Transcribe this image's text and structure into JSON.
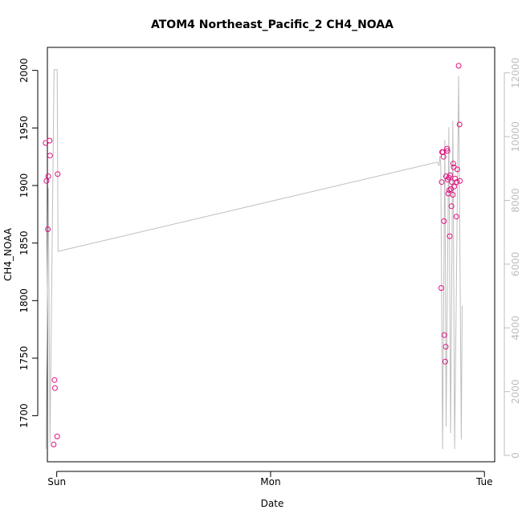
{
  "chart_data": {
    "type": "scatter",
    "title": "ATOM4 Northeast_Pacific_2 CH4_NOAA",
    "xlabel": "Date",
    "ylabel": "CH4_NOAA",
    "x_ticks": [
      "Sun",
      "Mon",
      "Tue"
    ],
    "x_range_hours": [
      -1.05,
      49.15
    ],
    "ylim": [
      1660,
      2020
    ],
    "y_ticks": [
      1700,
      1750,
      1800,
      1850,
      1900,
      1950,
      2000
    ],
    "y2lim": [
      -200,
      12800
    ],
    "y2_ticks": [
      0,
      2000,
      4000,
      6000,
      8000,
      10000,
      12000
    ],
    "colors": {
      "points": "#e0117f",
      "line": "#bebebe",
      "axis": "#000000",
      "right_axis": "#bdbdbd"
    },
    "points": [
      {
        "x": -1.25,
        "y": 1937
      },
      {
        "x": -1.15,
        "y": 1904
      },
      {
        "x": -1.0,
        "y": 1862
      },
      {
        "x": -0.95,
        "y": 1908
      },
      {
        "x": -0.8,
        "y": 1939
      },
      {
        "x": -0.75,
        "y": 1926
      },
      {
        "x": -0.35,
        "y": 1675
      },
      {
        "x": -0.25,
        "y": 1731
      },
      {
        "x": -0.2,
        "y": 1724
      },
      {
        "x": 0.05,
        "y": 1682
      },
      {
        "x": 0.1,
        "y": 1910
      },
      {
        "x": 43.15,
        "y": 1811
      },
      {
        "x": 43.2,
        "y": 1903
      },
      {
        "x": 43.25,
        "y": 1929
      },
      {
        "x": 43.35,
        "y": 1929
      },
      {
        "x": 43.4,
        "y": 1925
      },
      {
        "x": 43.45,
        "y": 1869
      },
      {
        "x": 43.5,
        "y": 1770
      },
      {
        "x": 43.6,
        "y": 1747
      },
      {
        "x": 43.65,
        "y": 1760
      },
      {
        "x": 43.7,
        "y": 1908
      },
      {
        "x": 43.8,
        "y": 1932
      },
      {
        "x": 43.85,
        "y": 1930
      },
      {
        "x": 43.9,
        "y": 1905
      },
      {
        "x": 43.95,
        "y": 1893
      },
      {
        "x": 44.0,
        "y": 1907
      },
      {
        "x": 44.05,
        "y": 1896
      },
      {
        "x": 44.1,
        "y": 1856
      },
      {
        "x": 44.15,
        "y": 1909
      },
      {
        "x": 44.25,
        "y": 1897
      },
      {
        "x": 44.3,
        "y": 1882
      },
      {
        "x": 44.35,
        "y": 1903
      },
      {
        "x": 44.45,
        "y": 1892
      },
      {
        "x": 44.5,
        "y": 1919
      },
      {
        "x": 44.55,
        "y": 1916
      },
      {
        "x": 44.6,
        "y": 1899
      },
      {
        "x": 44.7,
        "y": 1906
      },
      {
        "x": 44.85,
        "y": 1873
      },
      {
        "x": 44.9,
        "y": 1903
      },
      {
        "x": 44.95,
        "y": 1914
      },
      {
        "x": 45.1,
        "y": 2004
      },
      {
        "x": 45.2,
        "y": 1953
      },
      {
        "x": 45.25,
        "y": 1904
      }
    ],
    "line_series": [
      {
        "x": -1.2,
        "y": 200
      },
      {
        "x": -0.95,
        "y": 8400
      },
      {
        "x": -0.75,
        "y": 400
      },
      {
        "x": -0.3,
        "y": 12100
      },
      {
        "x": 0.0,
        "y": 12100
      },
      {
        "x": 0.05,
        "y": 12100
      },
      {
        "x": 0.15,
        "y": 6400
      },
      {
        "x": 42.7,
        "y": 9200
      },
      {
        "x": 42.9,
        "y": 9100
      },
      {
        "x": 43.0,
        "y": 9400
      },
      {
        "x": 43.1,
        "y": 9100
      },
      {
        "x": 43.3,
        "y": 200
      },
      {
        "x": 43.55,
        "y": 9900
      },
      {
        "x": 43.7,
        "y": 900
      },
      {
        "x": 44.0,
        "y": 10300
      },
      {
        "x": 44.2,
        "y": 700
      },
      {
        "x": 44.45,
        "y": 10500
      },
      {
        "x": 44.65,
        "y": 200
      },
      {
        "x": 45.1,
        "y": 11900
      },
      {
        "x": 45.4,
        "y": 500
      },
      {
        "x": 45.5,
        "y": 4700
      }
    ]
  }
}
